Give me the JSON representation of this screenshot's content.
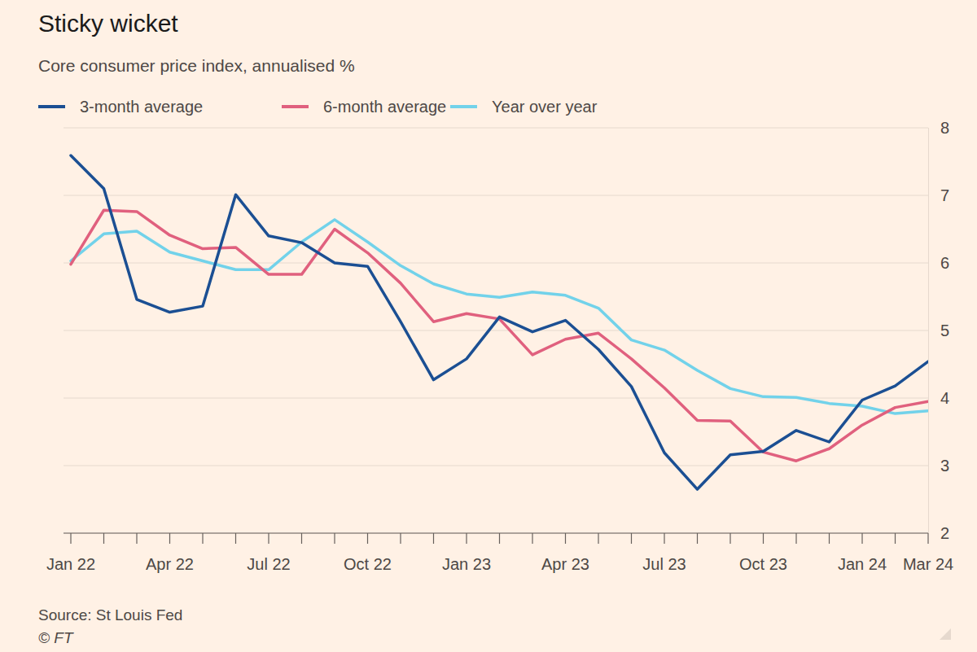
{
  "chart_data": {
    "type": "line",
    "title": "Sticky wicket",
    "subtitle": "Core consumer price index, annualised %",
    "source": "Source: St Louis Fed",
    "credit": "© FT",
    "categories": [
      "Jan 22",
      null,
      null,
      "Apr 22",
      null,
      null,
      "Jul 22",
      null,
      null,
      "Oct 22",
      null,
      null,
      "Jan 23",
      null,
      null,
      "Apr 23",
      null,
      null,
      "Jul 23",
      null,
      null,
      "Oct 23",
      null,
      null,
      "Jan 24",
      null,
      "Mar 24"
    ],
    "series": [
      {
        "name": "3-month average",
        "color": "#1b4f93",
        "values": [
          7.59,
          7.1,
          5.46,
          5.27,
          5.36,
          7.01,
          6.4,
          6.3,
          6.0,
          5.95,
          5.13,
          4.27,
          4.58,
          5.2,
          4.98,
          5.15,
          4.72,
          4.17,
          3.19,
          2.65,
          3.16,
          3.21,
          3.52,
          3.35,
          3.97,
          4.18,
          4.54
        ]
      },
      {
        "name": "6-month average",
        "color": "#e0607e",
        "values": [
          5.98,
          6.78,
          6.76,
          6.41,
          6.21,
          6.23,
          5.83,
          5.83,
          6.5,
          6.15,
          5.7,
          5.13,
          5.25,
          5.17,
          4.64,
          4.87,
          4.96,
          4.58,
          4.15,
          3.67,
          3.66,
          3.2,
          3.07,
          3.25,
          3.6,
          3.86,
          3.95
        ]
      },
      {
        "name": "Year over year",
        "color": "#72d2ea",
        "values": [
          6.03,
          6.43,
          6.47,
          6.16,
          6.03,
          5.9,
          5.9,
          6.31,
          6.64,
          6.31,
          5.96,
          5.69,
          5.54,
          5.49,
          5.57,
          5.52,
          5.33,
          4.86,
          4.71,
          4.41,
          4.14,
          4.02,
          4.01,
          3.92,
          3.88,
          3.77,
          3.81
        ]
      }
    ],
    "ylim": [
      2,
      8
    ],
    "yticks": [
      2,
      3,
      4,
      5,
      6,
      7,
      8
    ],
    "grid": true,
    "legend": "top"
  }
}
